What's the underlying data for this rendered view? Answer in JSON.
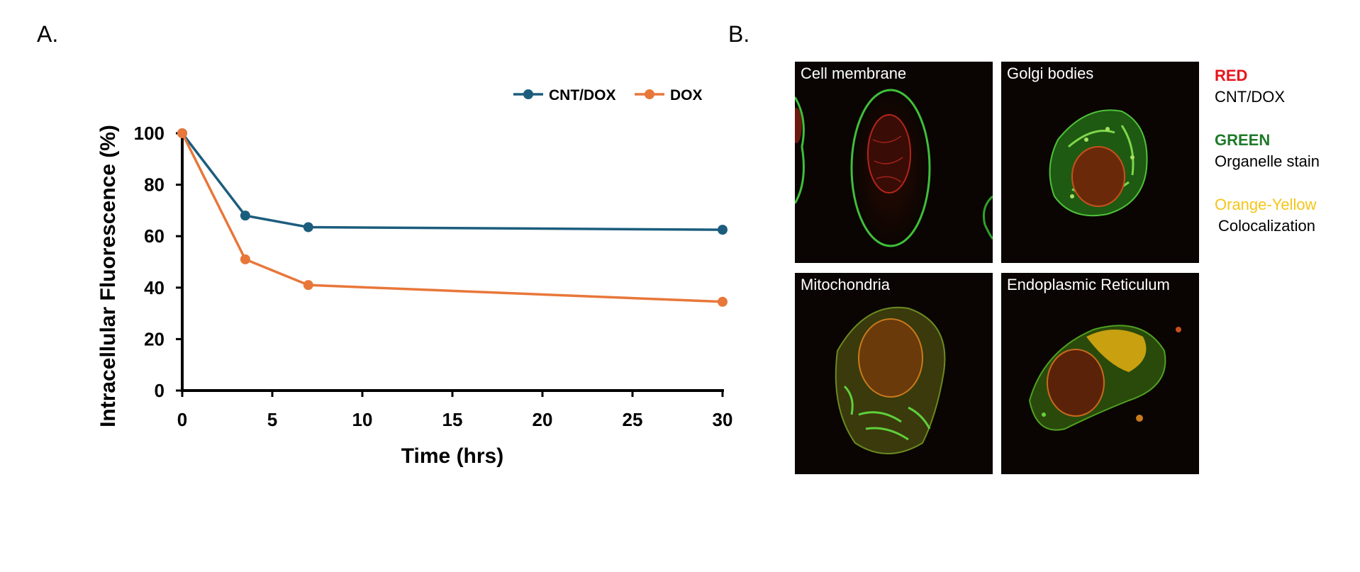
{
  "panels": {
    "a": "A.",
    "b": "B."
  },
  "chart_data": {
    "type": "line",
    "xlabel": "Time (hrs)",
    "ylabel": "Intracellular Fluorescence  (%)",
    "xlim": [
      0,
      30
    ],
    "ylim": [
      0,
      100
    ],
    "xticks": [
      0,
      5,
      10,
      15,
      20,
      25,
      30
    ],
    "yticks": [
      0,
      20,
      40,
      60,
      80,
      100
    ],
    "grid": false,
    "legend_position": "top-right",
    "series": [
      {
        "name": "CNT/DOX",
        "color": "#1c5d7d",
        "x": [
          0,
          3.5,
          7,
          30
        ],
        "y": [
          100,
          68,
          63.5,
          62.5
        ]
      },
      {
        "name": "DOX",
        "color": "#e8773a",
        "x": [
          0,
          3.5,
          7,
          30
        ],
        "y": [
          100,
          51,
          41,
          34.5
        ]
      }
    ]
  },
  "images": [
    {
      "label": "Cell membrane"
    },
    {
      "label": "Golgi bodies"
    },
    {
      "label": "Mitochondria"
    },
    {
      "label": "Endoplasmic Reticulum"
    }
  ],
  "key": [
    {
      "title": "RED",
      "desc": "CNT/DOX",
      "color": "#e8141c"
    },
    {
      "title": "GREEN",
      "desc": "Organelle stain",
      "color": "#1f7a2b"
    },
    {
      "title": "Orange-Yellow",
      "desc": "Colocalization",
      "color": "#f5c518"
    }
  ]
}
